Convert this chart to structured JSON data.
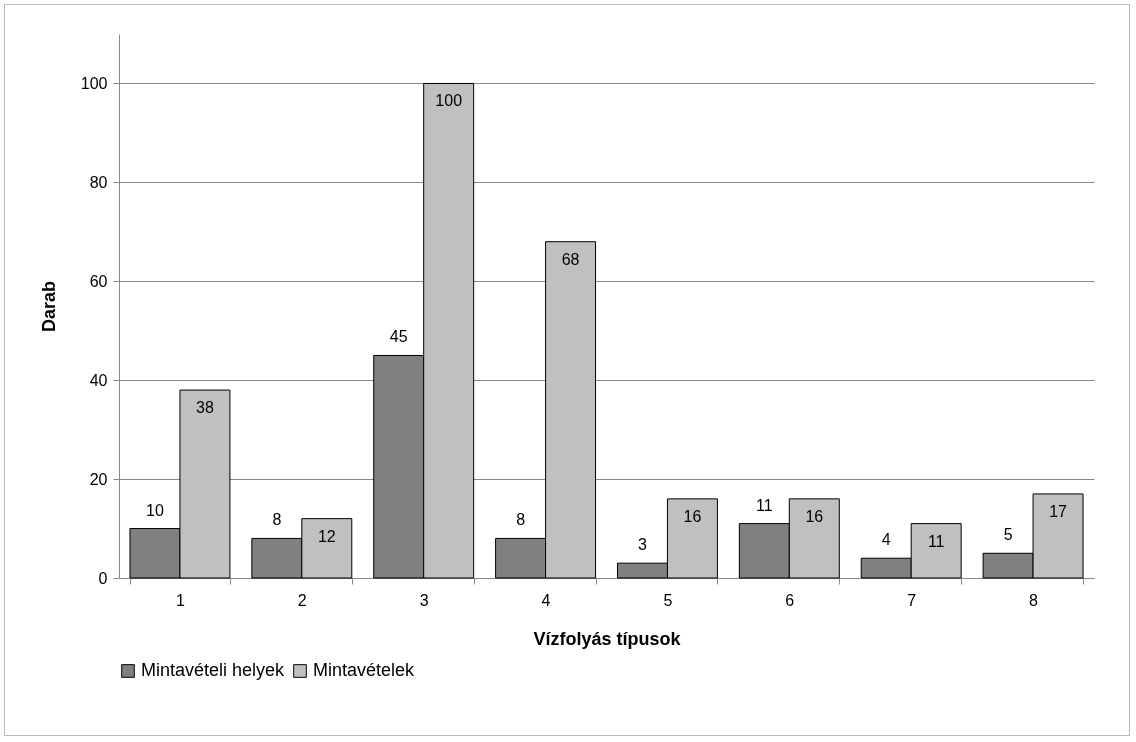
{
  "chart_data": {
    "type": "bar",
    "xlabel": "Vízfolyás típusok",
    "ylabel": "Darab",
    "categories": [
      "1",
      "2",
      "3",
      "4",
      "5",
      "6",
      "7",
      "8"
    ],
    "series": [
      {
        "name": "Mintavételi helyek",
        "color": "#808080",
        "values": [
          10,
          8,
          45,
          8,
          3,
          11,
          4,
          5
        ]
      },
      {
        "name": "Mintavételek",
        "color": "#c0c0c0",
        "values": [
          38,
          12,
          100,
          68,
          16,
          16,
          11,
          17
        ]
      }
    ],
    "ylim": [
      0,
      110
    ],
    "yticks": [
      0,
      20,
      40,
      60,
      80,
      100
    ],
    "grid": "y",
    "legend": "bottom",
    "data_labels": true
  }
}
